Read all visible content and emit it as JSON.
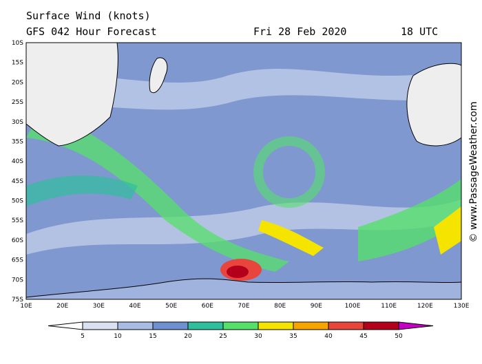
{
  "header": {
    "title": "Surface Wind (knots)",
    "model": "GFS 042 Hour Forecast",
    "date": "Fri 28 Feb 2020",
    "time": "18 UTC"
  },
  "map": {
    "latitude_labels": [
      "10S",
      "15S",
      "20S",
      "25S",
      "30S",
      "35S",
      "40S",
      "45S",
      "50S",
      "55S",
      "60S",
      "65S",
      "70S",
      "75S"
    ],
    "longitude_labels": [
      "10E",
      "20E",
      "30E",
      "40E",
      "50E",
      "60E",
      "70E",
      "80E",
      "90E",
      "100E",
      "110E",
      "120E",
      "130E"
    ]
  },
  "legend": {
    "ticks": [
      5,
      10,
      15,
      20,
      25,
      30,
      35,
      40,
      45,
      50
    ],
    "colors": [
      "#d9e1f2",
      "#a9bde3",
      "#6f90d0",
      "#2fbf9c",
      "#55e06a",
      "#f5e400",
      "#f6a400",
      "#e8453c",
      "#b5001c",
      "#c400c4"
    ]
  },
  "credit": "© www.PassageWeather.com"
}
